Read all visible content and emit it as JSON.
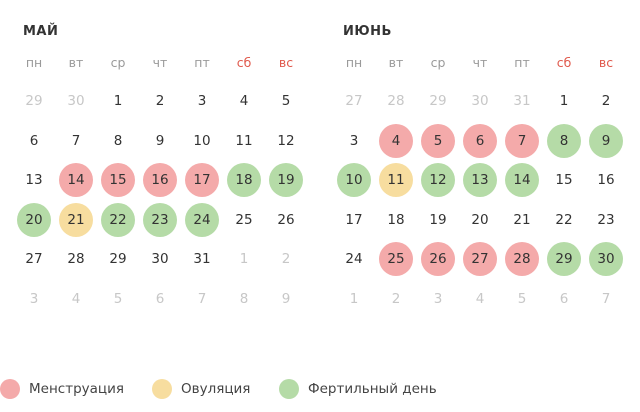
{
  "weekdays": [
    "пн",
    "вт",
    "ср",
    "чт",
    "пт",
    "сб",
    "вс"
  ],
  "colors": {
    "menstruation": "#f4aaaa",
    "ovulation": "#f7dd9f",
    "fertile": "#b5dba7",
    "weekend": "#e05a4d",
    "muted": "#c7c7c7"
  },
  "months": [
    {
      "title": "МАЙ",
      "weeks": [
        [
          {
            "d": "29",
            "o": 1
          },
          {
            "d": "30",
            "o": 1
          },
          {
            "d": "1"
          },
          {
            "d": "2"
          },
          {
            "d": "3"
          },
          {
            "d": "4"
          },
          {
            "d": "5"
          }
        ],
        [
          {
            "d": "6"
          },
          {
            "d": "7"
          },
          {
            "d": "8"
          },
          {
            "d": "9"
          },
          {
            "d": "10"
          },
          {
            "d": "11"
          },
          {
            "d": "12"
          }
        ],
        [
          {
            "d": "13"
          },
          {
            "d": "14",
            "t": "m"
          },
          {
            "d": "15",
            "t": "m"
          },
          {
            "d": "16",
            "t": "m"
          },
          {
            "d": "17",
            "t": "m"
          },
          {
            "d": "18",
            "t": "f"
          },
          {
            "d": "19",
            "t": "f"
          }
        ],
        [
          {
            "d": "20",
            "t": "f"
          },
          {
            "d": "21",
            "t": "o"
          },
          {
            "d": "22",
            "t": "f"
          },
          {
            "d": "23",
            "t": "f"
          },
          {
            "d": "24",
            "t": "f"
          },
          {
            "d": "25"
          },
          {
            "d": "26"
          }
        ],
        [
          {
            "d": "27"
          },
          {
            "d": "28"
          },
          {
            "d": "29"
          },
          {
            "d": "30"
          },
          {
            "d": "31"
          },
          {
            "d": "1",
            "o": 1
          },
          {
            "d": "2",
            "o": 1
          }
        ],
        [
          {
            "d": "3",
            "o": 1
          },
          {
            "d": "4",
            "o": 1
          },
          {
            "d": "5",
            "o": 1
          },
          {
            "d": "6",
            "o": 1
          },
          {
            "d": "7",
            "o": 1
          },
          {
            "d": "8",
            "o": 1
          },
          {
            "d": "9",
            "o": 1
          }
        ]
      ]
    },
    {
      "title": "ИЮНЬ",
      "weeks": [
        [
          {
            "d": "27",
            "o": 1
          },
          {
            "d": "28",
            "o": 1
          },
          {
            "d": "29",
            "o": 1
          },
          {
            "d": "30",
            "o": 1
          },
          {
            "d": "31",
            "o": 1
          },
          {
            "d": "1"
          },
          {
            "d": "2"
          }
        ],
        [
          {
            "d": "3"
          },
          {
            "d": "4",
            "t": "m"
          },
          {
            "d": "5",
            "t": "m"
          },
          {
            "d": "6",
            "t": "m"
          },
          {
            "d": "7",
            "t": "m"
          },
          {
            "d": "8",
            "t": "f"
          },
          {
            "d": "9",
            "t": "f"
          }
        ],
        [
          {
            "d": "10",
            "t": "f"
          },
          {
            "d": "11",
            "t": "o"
          },
          {
            "d": "12",
            "t": "f"
          },
          {
            "d": "13",
            "t": "f"
          },
          {
            "d": "14",
            "t": "f"
          },
          {
            "d": "15"
          },
          {
            "d": "16"
          }
        ],
        [
          {
            "d": "17"
          },
          {
            "d": "18"
          },
          {
            "d": "19"
          },
          {
            "d": "20"
          },
          {
            "d": "21"
          },
          {
            "d": "22"
          },
          {
            "d": "23"
          }
        ],
        [
          {
            "d": "24"
          },
          {
            "d": "25",
            "t": "m"
          },
          {
            "d": "26",
            "t": "m"
          },
          {
            "d": "27",
            "t": "m"
          },
          {
            "d": "28",
            "t": "m"
          },
          {
            "d": "29",
            "t": "f"
          },
          {
            "d": "30",
            "t": "f"
          }
        ],
        [
          {
            "d": "1",
            "o": 1
          },
          {
            "d": "2",
            "o": 1
          },
          {
            "d": "3",
            "o": 1
          },
          {
            "d": "4",
            "o": 1
          },
          {
            "d": "5",
            "o": 1
          },
          {
            "d": "6",
            "o": 1
          },
          {
            "d": "7",
            "o": 1
          }
        ]
      ]
    }
  ],
  "legend": [
    {
      "key": "m",
      "label": "Менструация"
    },
    {
      "key": "o",
      "label": "Овуляция"
    },
    {
      "key": "f",
      "label": "Фертильный день"
    }
  ]
}
